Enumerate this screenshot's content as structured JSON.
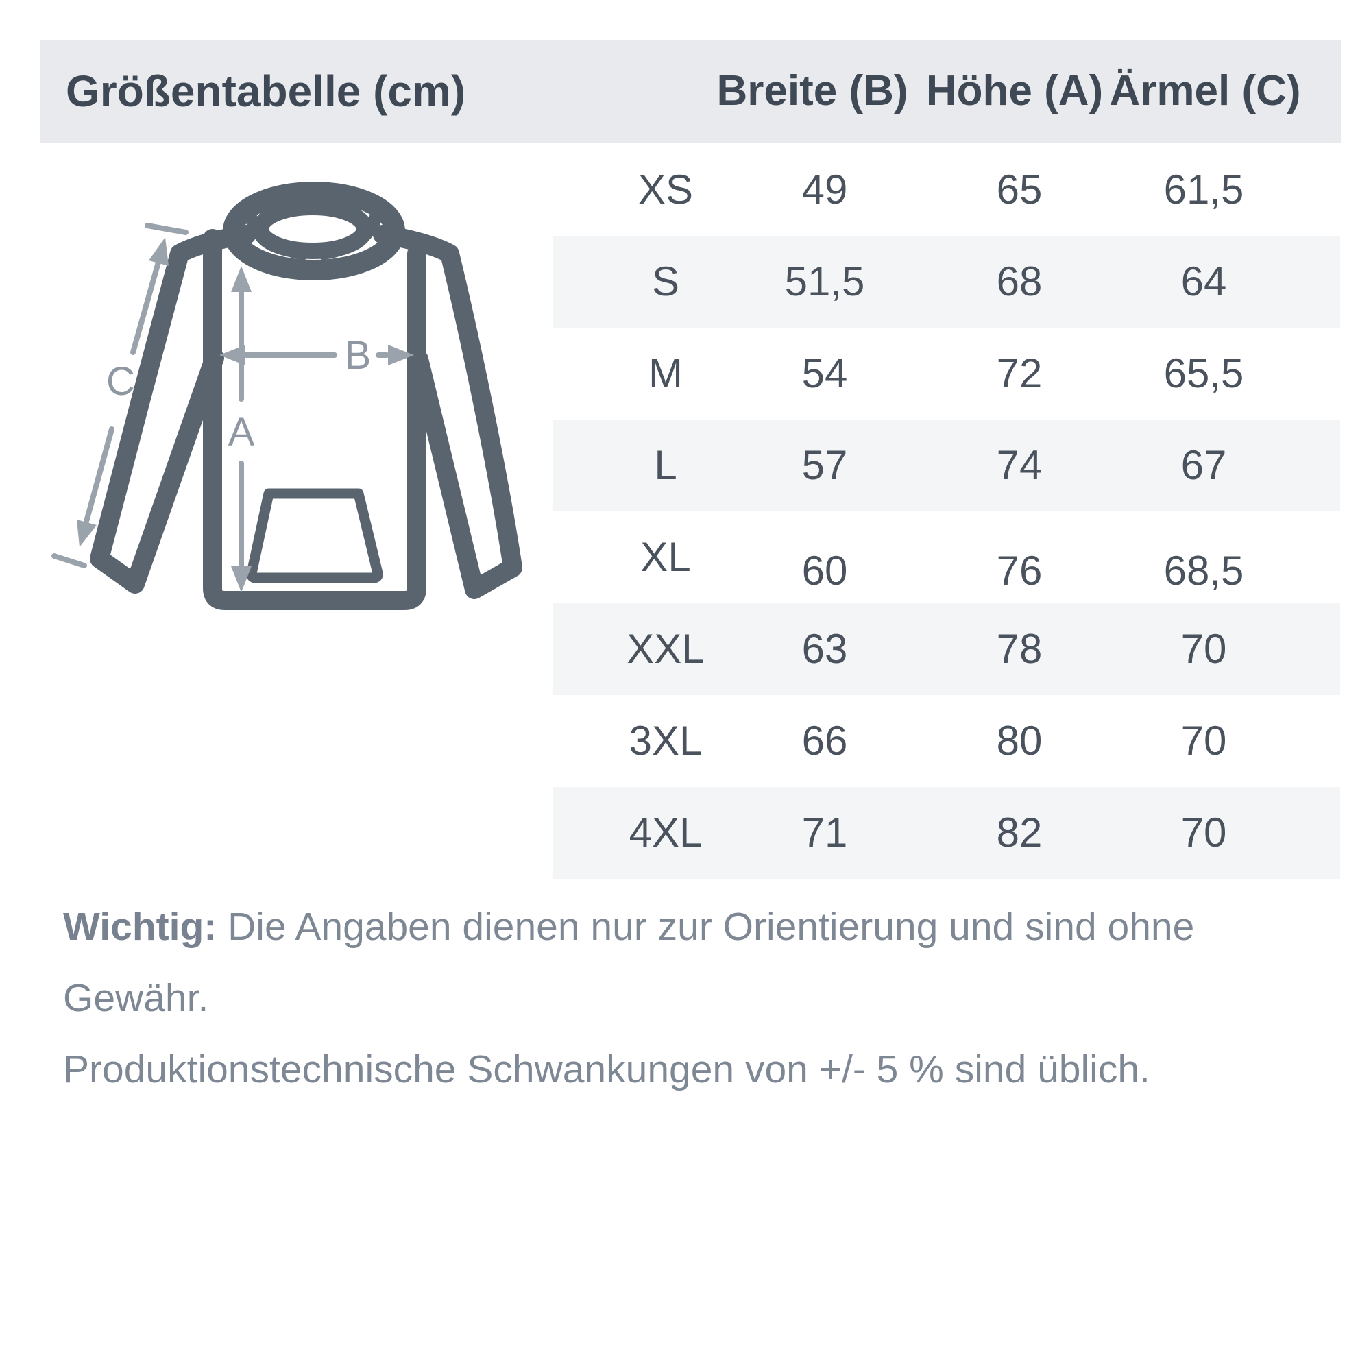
{
  "header": {
    "title": "Größentabelle (cm)",
    "columns": [
      "Breite (B)",
      "Höhe (A)",
      "Ärmel (C)"
    ]
  },
  "table": {
    "rows": [
      {
        "size": "XS",
        "breite": "49",
        "hoehe": "65",
        "aermel": "61,5"
      },
      {
        "size": "S",
        "breite": "51,5",
        "hoehe": "68",
        "aermel": "64"
      },
      {
        "size": "M",
        "breite": "54",
        "hoehe": "72",
        "aermel": "65,5"
      },
      {
        "size": "L",
        "breite": "57",
        "hoehe": "74",
        "aermel": "67"
      },
      {
        "size": "XL",
        "breite": "60",
        "hoehe": "76",
        "aermel": "68,5"
      },
      {
        "size": "XXL",
        "breite": "63",
        "hoehe": "78",
        "aermel": "70"
      },
      {
        "size": "3XL",
        "breite": "66",
        "hoehe": "80",
        "aermel": "70"
      },
      {
        "size": "4XL",
        "breite": "71",
        "hoehe": "82",
        "aermel": "70"
      }
    ]
  },
  "diagram": {
    "label_a": "A",
    "label_b": "B",
    "label_c": "C"
  },
  "footer": {
    "emphasis": "Wichtig:",
    "line1": "Die Angaben dienen nur zur Orientierung und sind ohne Gewähr.",
    "line2": "Produktionstechnische Schwankungen von +/- 5 % sind üblich."
  },
  "colors": {
    "header_bg": "#e8eaed",
    "stripe_bg": "#f4f5f7",
    "text_dark": "#3f4956",
    "cell_text": "#49525d",
    "text_muted": "#7e8794",
    "hoodie_outline": "#5a646e",
    "arrow_gray": "#9aa3ab"
  }
}
